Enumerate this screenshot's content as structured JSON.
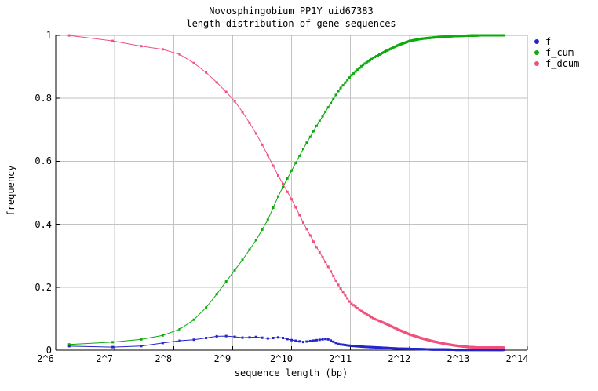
{
  "title": {
    "line1": "Novosphingobium PP1Y uid67383",
    "line2": "length distribution of gene sequences"
  },
  "axes": {
    "x_label": "sequence length (bp)",
    "y_label": "frequency",
    "x_ticks": [
      {
        "label": "2^6",
        "log2": 6
      },
      {
        "label": "2^7",
        "log2": 7
      },
      {
        "label": "2^8",
        "log2": 8
      },
      {
        "label": "2^9",
        "log2": 9
      },
      {
        "label": "2^10",
        "log2": 10
      },
      {
        "label": "2^11",
        "log2": 11
      },
      {
        "label": "2^12",
        "log2": 12
      },
      {
        "label": "2^13",
        "log2": 13
      },
      {
        "label": "2^14",
        "log2": 14
      }
    ],
    "y_ticks": [
      {
        "label": "0",
        "value": 0
      },
      {
        "label": "0.2",
        "value": 0.2
      },
      {
        "label": "0.4",
        "value": 0.4
      },
      {
        "label": "0.6",
        "value": 0.6
      },
      {
        "label": "0.8",
        "value": 0.8
      },
      {
        "label": "1",
        "value": 1
      }
    ]
  },
  "legend": [
    {
      "label": "f",
      "color": "#2525cd"
    },
    {
      "label": "f_cum",
      "color": "#0cab0c"
    },
    {
      "label": "f_dcum",
      "color": "#f0507c"
    }
  ],
  "colors": {
    "background": "#ffffff",
    "grid": "#c2c2c2",
    "border_gray": "#a9a9a9",
    "axis_black": "#000000",
    "text": "#000000"
  },
  "chart_data": {
    "type": "line",
    "title": "Novosphingobium PP1Y uid67383 — length distribution of gene sequences",
    "xlabel": "sequence length (bp)",
    "ylabel": "frequency",
    "x_scale": "log2",
    "xlim_log2": [
      6,
      14
    ],
    "ylim": [
      0,
      1
    ],
    "grid": true,
    "legend_position": "outside-top-right",
    "bin_width_bp": 50,
    "first_bin_bp": 75,
    "last_bin_bp": 12400,
    "x_log2": [
      6.2,
      6.4,
      6.6,
      6.8,
      7.0,
      7.2,
      7.4,
      7.6,
      7.8,
      8.0,
      8.2,
      8.4,
      8.6,
      8.8,
      9.0,
      9.2,
      9.4,
      9.6,
      9.8,
      10.0,
      10.2,
      10.4,
      10.6,
      10.8,
      11.0,
      11.2,
      11.4,
      11.6,
      11.8,
      12.0,
      12.2,
      12.4,
      12.6,
      12.8,
      13.0,
      13.2,
      13.4,
      13.6
    ],
    "series": [
      {
        "name": "f",
        "color": "#2525cd",
        "values": [
          0.013,
          0.011,
          0.01,
          0.009,
          0.01,
          0.007,
          0.012,
          0.016,
          0.022,
          0.032,
          0.028,
          0.035,
          0.04,
          0.046,
          0.043,
          0.039,
          0.042,
          0.037,
          0.041,
          0.032,
          0.026,
          0.031,
          0.036,
          0.019,
          0.014,
          0.011,
          0.009,
          0.007,
          0.005,
          0.004,
          0.003,
          0.002,
          0.002,
          0.001,
          0.001,
          0.001,
          0.001,
          0.001
        ]
      },
      {
        "name": "f_cum",
        "color": "#0cab0c",
        "values": [
          0.018,
          0.019,
          0.021,
          0.023,
          0.026,
          0.029,
          0.033,
          0.038,
          0.046,
          0.057,
          0.075,
          0.105,
          0.145,
          0.195,
          0.245,
          0.295,
          0.35,
          0.415,
          0.5,
          0.57,
          0.64,
          0.705,
          0.765,
          0.825,
          0.87,
          0.905,
          0.93,
          0.95,
          0.968,
          0.982,
          0.989,
          0.993,
          0.996,
          0.998,
          0.999,
          1.0,
          1.0,
          1.0
        ]
      },
      {
        "name": "f_dcum",
        "color": "#f0507c",
        "values": [
          1.0,
          0.998,
          0.994,
          0.988,
          0.981,
          0.975,
          0.968,
          0.96,
          0.956,
          0.95,
          0.93,
          0.905,
          0.875,
          0.838,
          0.8,
          0.748,
          0.688,
          0.618,
          0.545,
          0.48,
          0.405,
          0.335,
          0.272,
          0.205,
          0.15,
          0.122,
          0.1,
          0.084,
          0.066,
          0.05,
          0.038,
          0.028,
          0.02,
          0.014,
          0.01,
          0.008,
          0.008,
          0.008
        ]
      }
    ]
  }
}
